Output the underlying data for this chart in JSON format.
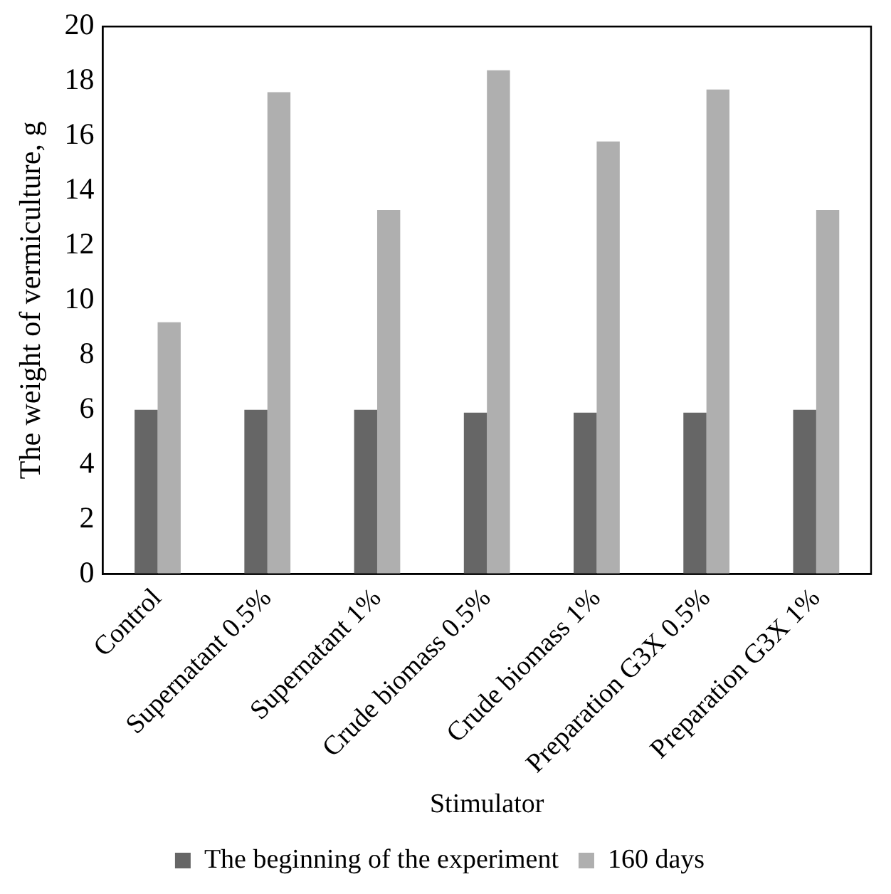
{
  "chart_data": {
    "type": "bar",
    "xlabel": "Stimulator",
    "ylabel": "The weight of vermiculture, g",
    "categories": [
      "Control",
      "Supernatant 0.5%",
      "Supernatant 1%",
      "Crude biomass 0.5%",
      "Crude biomass 1%",
      "Preparation G3X 0.5%",
      "Preparation G3X 1%"
    ],
    "series": [
      {
        "name": "The beginning of the experiment",
        "color": "#666666",
        "values": [
          6.0,
          6.0,
          6.0,
          5.9,
          5.9,
          5.9,
          6.0
        ]
      },
      {
        "name": "160 days",
        "color": "#afafaf",
        "values": [
          9.2,
          17.6,
          13.3,
          18.4,
          15.8,
          17.7,
          13.3
        ]
      }
    ],
    "ylim": [
      0,
      20
    ],
    "yticks": [
      0,
      2,
      4,
      6,
      8,
      10,
      12,
      14,
      16,
      18,
      20
    ],
    "grid": false,
    "legend": "bottom"
  }
}
